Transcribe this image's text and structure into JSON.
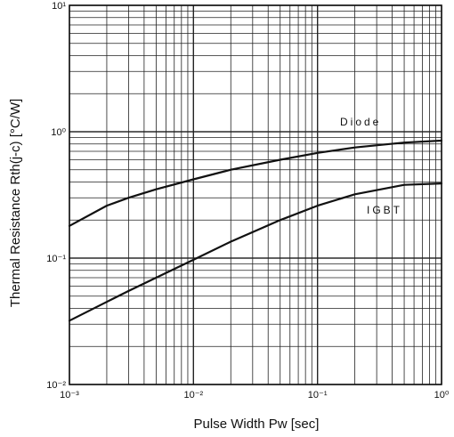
{
  "chart_data": {
    "type": "line",
    "title": "",
    "xlabel": "Pulse Width Pw [sec]",
    "ylabel": "Thermal Resistance Rth(j-c) [°C/W]",
    "x_scale": "log",
    "y_scale": "log",
    "xlim": [
      0.001,
      1
    ],
    "ylim": [
      0.01,
      10
    ],
    "grid": true,
    "x_ticks": [
      {
        "value": 0.001,
        "label": "10⁻³"
      },
      {
        "value": 0.01,
        "label": "10⁻²"
      },
      {
        "value": 0.1,
        "label": "10⁻¹"
      },
      {
        "value": 1,
        "label": "10⁰"
      }
    ],
    "y_ticks": [
      {
        "value": 0.01,
        "label": "10⁻²"
      },
      {
        "value": 0.1,
        "label": "10⁻¹"
      },
      {
        "value": 1,
        "label": "10⁰"
      },
      {
        "value": 10,
        "label": "10¹"
      }
    ],
    "series": [
      {
        "name": "Diode",
        "x": [
          0.001,
          0.002,
          0.003,
          0.005,
          0.01,
          0.02,
          0.05,
          0.1,
          0.2,
          0.5,
          1
        ],
        "y": [
          0.18,
          0.26,
          0.3,
          0.35,
          0.42,
          0.5,
          0.6,
          0.68,
          0.75,
          0.82,
          0.85
        ]
      },
      {
        "name": "IGBT",
        "x": [
          0.001,
          0.002,
          0.003,
          0.005,
          0.01,
          0.02,
          0.05,
          0.1,
          0.2,
          0.5,
          1
        ],
        "y": [
          0.032,
          0.045,
          0.055,
          0.07,
          0.097,
          0.135,
          0.2,
          0.26,
          0.32,
          0.38,
          0.39
        ]
      }
    ]
  }
}
